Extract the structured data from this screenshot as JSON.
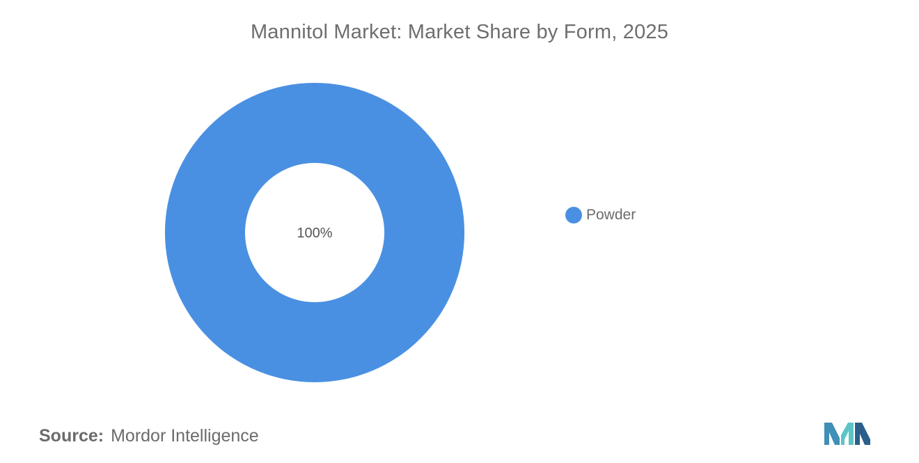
{
  "chart_data": {
    "type": "pie",
    "title": "Mannitol Market: Market Share by Form, 2025",
    "categories": [
      "Powder"
    ],
    "values": [
      100
    ],
    "data_labels": [
      "100%"
    ],
    "colors": [
      "#4a90e2"
    ],
    "legend_position": "right"
  },
  "source": {
    "label": "Source:",
    "name": "Mordor Intelligence"
  },
  "logo": {
    "icon": "mordor-intelligence-logo",
    "colors": [
      "#3f8fb7",
      "#5cc4c7",
      "#2b5f8a"
    ]
  }
}
